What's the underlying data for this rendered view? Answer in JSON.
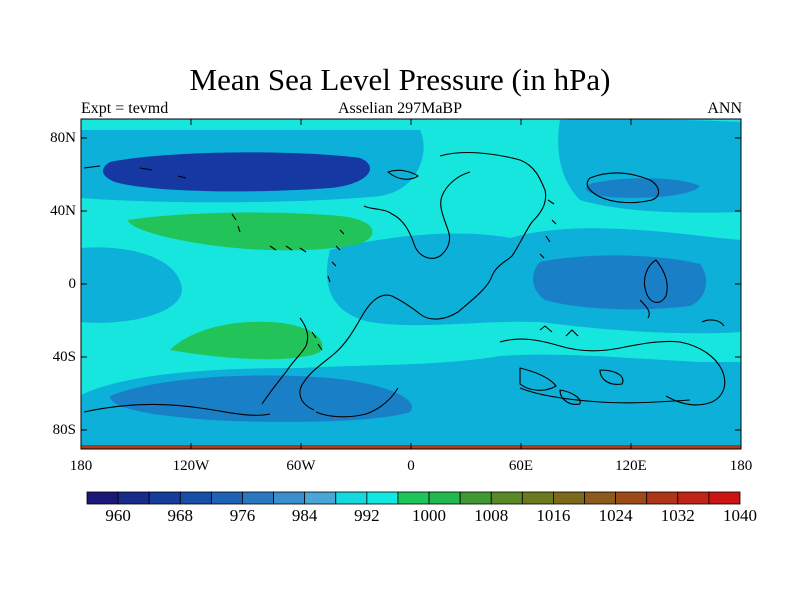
{
  "title": "Mean Sea Level Pressure (in hPa)",
  "subtitle_left": "Expt = tevmd",
  "subtitle_center": "Asselian 297MaBP",
  "subtitle_right": "ANN",
  "y_ticks": [
    "80N",
    "40N",
    "0",
    "40S",
    "80S"
  ],
  "x_ticks": [
    "180",
    "120W",
    "60W",
    "0",
    "60E",
    "120E",
    "180"
  ],
  "colorbar": {
    "levels": [
      960,
      964,
      968,
      972,
      976,
      980,
      984,
      988,
      992,
      996,
      1000,
      1004,
      1008,
      1012,
      1016,
      1020,
      1024,
      1028,
      1032,
      1036,
      1040
    ],
    "labels": [
      "960",
      "968",
      "976",
      "984",
      "992",
      "1000",
      "1008",
      "1016",
      "1024",
      "1032",
      "1040"
    ],
    "colors": [
      "#1c1877",
      "#182a8a",
      "#163c9c",
      "#164ea8",
      "#1d62b4",
      "#2b78c0",
      "#3b8ecc",
      "#4ba6d8",
      "#17d7df",
      "#12e8e0",
      "#1ec65a",
      "#23b950",
      "#3f9a32",
      "#5a8826",
      "#6a7a1e",
      "#7c6a1c",
      "#8c5a1a",
      "#9c4a18",
      "#ae3616",
      "#c02414",
      "#cc1412"
    ]
  },
  "map_colors": {
    "cyan": "#17e6de",
    "light_blue": "#0cb0d8",
    "mid_blue": "#1980c8",
    "dark_blue": "#1538a2",
    "green": "#22c45a",
    "red_band": "#b33a16"
  }
}
